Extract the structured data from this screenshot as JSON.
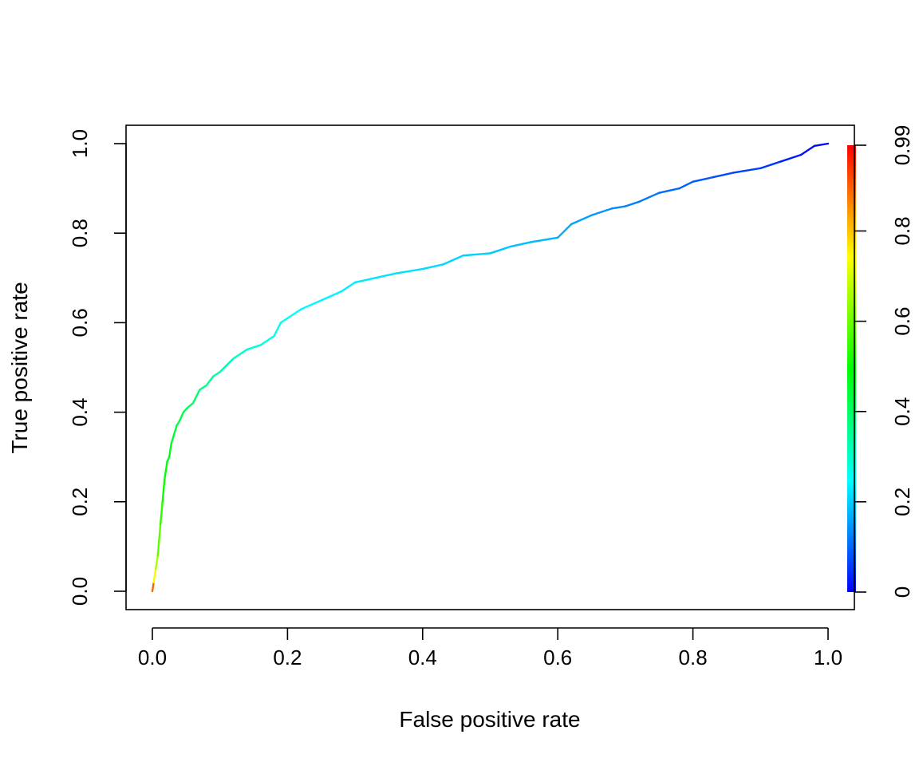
{
  "chart_data": {
    "type": "line",
    "title": "",
    "xlabel": "False positive rate",
    "ylabel": "True positive rate",
    "xlim": [
      0,
      1
    ],
    "ylim": [
      0,
      1
    ],
    "xticks": [
      "0.0",
      "0.2",
      "0.4",
      "0.6",
      "0.8",
      "1.0"
    ],
    "yticks": [
      "0.0",
      "0.2",
      "0.4",
      "0.6",
      "0.8",
      "1.0"
    ],
    "grid": false,
    "legend": "none",
    "series": [
      {
        "x": [
          0.0,
          0.002,
          0.005,
          0.008,
          0.012,
          0.015,
          0.018,
          0.022,
          0.025,
          0.028,
          0.032,
          0.036,
          0.04,
          0.046,
          0.052,
          0.06,
          0.07,
          0.08,
          0.09,
          0.1,
          0.12,
          0.14,
          0.16,
          0.18,
          0.19,
          0.2,
          0.22,
          0.25,
          0.28,
          0.3,
          0.33,
          0.36,
          0.4,
          0.43,
          0.46,
          0.5,
          0.53,
          0.56,
          0.6,
          0.62,
          0.65,
          0.68,
          0.7,
          0.72,
          0.75,
          0.78,
          0.8,
          0.83,
          0.86,
          0.9,
          0.93,
          0.96,
          0.98,
          1.0
        ],
        "y": [
          0.0,
          0.02,
          0.05,
          0.08,
          0.15,
          0.2,
          0.25,
          0.29,
          0.3,
          0.33,
          0.35,
          0.37,
          0.38,
          0.4,
          0.41,
          0.42,
          0.45,
          0.46,
          0.48,
          0.49,
          0.52,
          0.54,
          0.55,
          0.57,
          0.6,
          0.61,
          0.63,
          0.65,
          0.67,
          0.69,
          0.7,
          0.71,
          0.72,
          0.73,
          0.75,
          0.755,
          0.77,
          0.78,
          0.79,
          0.82,
          0.84,
          0.855,
          0.86,
          0.87,
          0.89,
          0.9,
          0.915,
          0.925,
          0.935,
          0.945,
          0.96,
          0.975,
          0.995,
          1.0
        ],
        "cutoff": [
          0.99,
          0.8,
          0.7,
          0.62,
          0.55,
          0.52,
          0.5,
          0.48,
          0.47,
          0.46,
          0.45,
          0.44,
          0.43,
          0.42,
          0.41,
          0.4,
          0.38,
          0.36,
          0.34,
          0.33,
          0.31,
          0.29,
          0.28,
          0.27,
          0.26,
          0.25,
          0.245,
          0.24,
          0.235,
          0.23,
          0.225,
          0.22,
          0.215,
          0.21,
          0.205,
          0.2,
          0.19,
          0.18,
          0.17,
          0.16,
          0.15,
          0.14,
          0.13,
          0.12,
          0.11,
          0.1,
          0.09,
          0.08,
          0.07,
          0.06,
          0.04,
          0.02,
          0.01,
          0.0
        ]
      }
    ],
    "colorbar": {
      "ticks": [
        "0",
        "0.2",
        "0.4",
        "0.6",
        "0.8",
        "0.99"
      ],
      "tick_values": [
        0,
        0.2,
        0.4,
        0.6,
        0.8,
        0.99
      ],
      "range": [
        0,
        0.99
      ],
      "colors": [
        "#0000ff",
        "#00ffff",
        "#00ff00",
        "#ffff00",
        "#ff0000"
      ],
      "placement": "right"
    }
  }
}
